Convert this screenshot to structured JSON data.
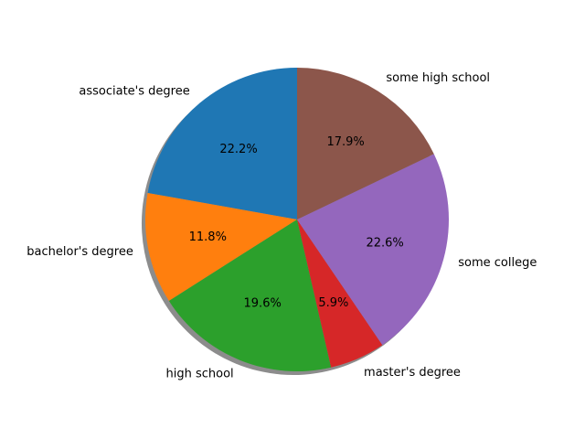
{
  "chart_data": {
    "type": "pie",
    "title": "",
    "shadow": true,
    "start_angle_deg": 90,
    "direction": "counterclockwise",
    "slices": [
      {
        "label": "associate's degree",
        "value": 22.2,
        "pct_text": "22.2%",
        "color": "#1f77b4"
      },
      {
        "label": "bachelor's degree",
        "value": 11.8,
        "pct_text": "11.8%",
        "color": "#ff7f0e"
      },
      {
        "label": "high school",
        "value": 19.6,
        "pct_text": "19.6%",
        "color": "#2ca02c"
      },
      {
        "label": "master's degree",
        "value": 5.9,
        "pct_text": "5.9%",
        "color": "#d62728"
      },
      {
        "label": "some college",
        "value": 22.6,
        "pct_text": "22.6%",
        "color": "#9467bd"
      },
      {
        "label": "some high school",
        "value": 17.9,
        "pct_text": "17.9%",
        "color": "#8c564b"
      }
    ]
  }
}
